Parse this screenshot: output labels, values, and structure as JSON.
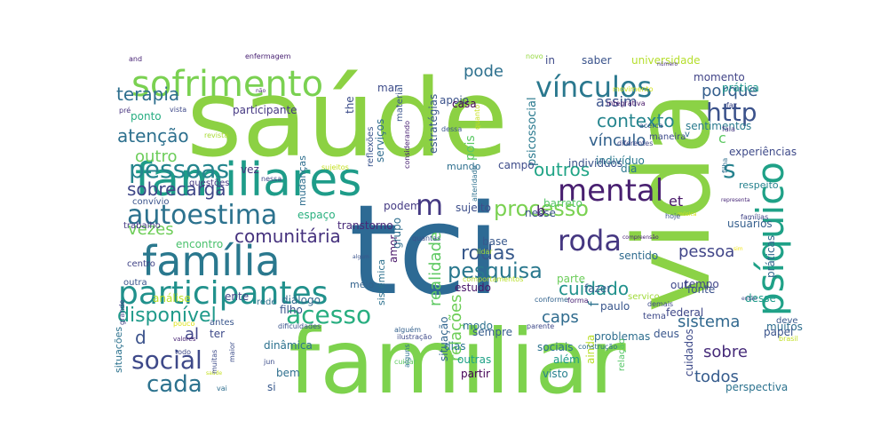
{
  "cloud": {
    "words": [
      {
        "text": "tci",
        "color": "#2d6a94"
      },
      {
        "text": "saúde",
        "color": "#8cd143"
      },
      {
        "text": "familiar",
        "color": "#7dd24d"
      },
      {
        "text": "vida",
        "color": "#8bd246"
      },
      {
        "text": "familiares",
        "color": "#1e9c89"
      },
      {
        "text": "família",
        "color": "#2a788e"
      },
      {
        "text": "sofrimento",
        "color": "#7ad151"
      },
      {
        "text": "participantes",
        "color": "#21918c"
      },
      {
        "text": "psíquico",
        "color": "#1fa187"
      },
      {
        "text": "mental",
        "color": "#481f70"
      },
      {
        "text": "vínculos",
        "color": "#2a788e"
      },
      {
        "text": "pessoas",
        "color": "#25858e"
      },
      {
        "text": "autoestima",
        "color": "#2c728e"
      },
      {
        "text": "acesso",
        "color": "#28ae80"
      },
      {
        "text": "roda",
        "color": "#453781"
      },
      {
        "text": "http",
        "color": "#3b528b"
      },
      {
        "text": "social",
        "color": "#3e4989"
      },
      {
        "text": "cada",
        "color": "#2c728e"
      },
      {
        "text": "m",
        "color": "#443983"
      },
      {
        "text": "s",
        "color": "#26828e"
      },
      {
        "text": "pesquisa",
        "color": "#2a788e"
      },
      {
        "text": "rodas",
        "color": "#38598c"
      },
      {
        "text": "processo",
        "color": "#7ad151"
      },
      {
        "text": "disponível",
        "color": "#1f9a8a"
      },
      {
        "text": "terapia",
        "color": "#2e6f8e"
      },
      {
        "text": "sobrecarga",
        "color": "#3f4788"
      },
      {
        "text": "comunitária",
        "color": "#46327e"
      },
      {
        "text": "cuidado",
        "color": "#21918c"
      },
      {
        "text": "contexto",
        "color": "#25858e"
      },
      {
        "text": "vínculo",
        "color": "#33628d"
      },
      {
        "text": "atenção",
        "color": "#2d708e"
      },
      {
        "text": "outro",
        "color": "#6ccd5a"
      },
      {
        "text": "outros",
        "color": "#20a486"
      },
      {
        "text": "vezes",
        "color": "#6ece58"
      },
      {
        "text": "pode",
        "color": "#2d708e"
      },
      {
        "text": "assim",
        "color": "#3b528b"
      },
      {
        "text": "porque",
        "color": "#355f8d"
      },
      {
        "text": "sistema",
        "color": "#31688e"
      },
      {
        "text": "sobre",
        "color": "#472c7a"
      },
      {
        "text": "todos",
        "color": "#365c8d"
      },
      {
        "text": "pessoa",
        "color": "#404588"
      },
      {
        "text": "caps",
        "color": "#2f6b8e"
      },
      {
        "text": "relações",
        "color": "#6ece58"
      },
      {
        "text": "realidade",
        "color": "#5ec962"
      },
      {
        "text": "et",
        "color": "#481769"
      },
      {
        "text": "c",
        "color": "#5ec962"
      },
      {
        "text": "d",
        "color": "#3b528b"
      },
      {
        "text": "al",
        "color": "#404688"
      },
      {
        "text": "b",
        "color": "#481a6c"
      },
      {
        "text": "f",
        "color": "#2c728e"
      },
      {
        "text": "universidade",
        "color": "#b5de2b"
      },
      {
        "text": "momento",
        "color": "#414487"
      },
      {
        "text": "saber",
        "color": "#3a538b"
      },
      {
        "text": "in",
        "color": "#3e4a89"
      },
      {
        "text": "and",
        "color": "#482475"
      },
      {
        "text": "enfermagem",
        "color": "#482173"
      },
      {
        "text": "novo",
        "color": "#95d840"
      },
      {
        "text": "número",
        "color": "#46307e"
      },
      {
        "text": "prática",
        "color": "#1f958b"
      },
      {
        "text": "sentimentos",
        "color": "#2a7b8e"
      },
      {
        "text": "participante",
        "color": "#453882"
      },
      {
        "text": "ponto",
        "color": "#26ad81"
      },
      {
        "text": "mudanças",
        "color": "#2e6e8e"
      },
      {
        "text": "the",
        "color": "#3d4d8a"
      },
      {
        "text": "serviços",
        "color": "#2f6c8e"
      },
      {
        "text": "estratégias",
        "color": "#39568c"
      },
      {
        "text": "apoio",
        "color": "#3b528b"
      },
      {
        "text": "pois",
        "color": "#5ac864"
      },
      {
        "text": "psicossocial",
        "color": "#29798e"
      },
      {
        "text": "casa",
        "color": "#440154"
      },
      {
        "text": "mar",
        "color": "#3e4c8a"
      },
      {
        "text": "campo",
        "color": "#3e4c8a"
      },
      {
        "text": "barreto",
        "color": "#56c667"
      },
      {
        "text": "indivíduo",
        "color": "#2a788e"
      },
      {
        "text": "indivíduos",
        "color": "#3a538b"
      },
      {
        "text": "mundo",
        "color": "#2e6f8e"
      },
      {
        "text": "dia",
        "color": "#2a778e"
      },
      {
        "text": "experiências",
        "color": "#3e4a89"
      },
      {
        "text": "respeito",
        "color": "#26828e"
      },
      {
        "text": "vez",
        "color": "#46337f"
      },
      {
        "text": "nessa",
        "color": "#3f4889"
      },
      {
        "text": "espaço",
        "color": "#2ab07f"
      },
      {
        "text": "podem",
        "color": "#443a83"
      },
      {
        "text": "sujeito",
        "color": "#3d4e8a"
      },
      {
        "text": "nesse",
        "color": "#3b528b"
      },
      {
        "text": "transtorno",
        "color": "#472878"
      },
      {
        "text": "encontro",
        "color": "#4ac16d"
      },
      {
        "text": "base",
        "color": "#38588c"
      },
      {
        "text": "lidar",
        "color": "#a2da37"
      },
      {
        "text": "sentido",
        "color": "#2f6b8e"
      },
      {
        "text": "out",
        "color": "#3f4889"
      },
      {
        "text": "fonte",
        "color": "#3b528b"
      },
      {
        "text": "tempo",
        "color": "#404588"
      },
      {
        "text": "fazer",
        "color": "#365c8d"
      },
      {
        "text": "parte",
        "color": "#6ccd5a"
      },
      {
        "text": "paulo",
        "color": "#39568c"
      },
      {
        "text": "estudo",
        "color": "#481668"
      },
      {
        "text": "meio",
        "color": "#33638d"
      },
      {
        "text": "amor",
        "color": "#481668"
      },
      {
        "text": "grupo",
        "color": "#2e6e8e"
      },
      {
        "text": "análise",
        "color": "#bddf26"
      },
      {
        "text": "diálogo",
        "color": "#31688e"
      },
      {
        "text": "filho",
        "color": "#3a548c"
      },
      {
        "text": "ente",
        "color": "#414487"
      },
      {
        "text": "modo",
        "color": "#2c718e"
      },
      {
        "text": "sempre",
        "color": "#365d8d"
      },
      {
        "text": "situação",
        "color": "#32658e"
      },
      {
        "text": "sociais",
        "color": "#2c728e"
      },
      {
        "text": "além",
        "color": "#1e9b8a"
      },
      {
        "text": "outras",
        "color": "#1fa287"
      },
      {
        "text": "dias",
        "color": "#2b758e"
      },
      {
        "text": "partir",
        "color": "#440154"
      },
      {
        "text": "visto",
        "color": "#27808e"
      },
      {
        "text": "dinâmica",
        "color": "#2c718e"
      },
      {
        "text": "bem",
        "color": "#2e6f8e"
      },
      {
        "text": "si",
        "color": "#38598c"
      },
      {
        "text": "jun",
        "color": "#3d4d8a"
      },
      {
        "text": "ter",
        "color": "#3e4a89"
      },
      {
        "text": "dificuldades",
        "color": "#3a538b"
      },
      {
        "text": "perspectiva",
        "color": "#2c728e"
      },
      {
        "text": "ainda",
        "color": "#bade28"
      },
      {
        "text": "situações",
        "color": "#2c728e"
      },
      {
        "text": "sistêmica",
        "color": "#2d718e"
      },
      {
        "text": "federal",
        "color": "#3f4788"
      },
      {
        "text": "usuários",
        "color": "#355f8d"
      },
      {
        "text": "práticas",
        "color": "#31678e"
      },
      {
        "text": "desse",
        "color": "#1f9a8a"
      },
      {
        "text": "muitos",
        "color": "#2e6e8e"
      },
      {
        "text": "tema",
        "color": "#3e4a89"
      },
      {
        "text": "deve",
        "color": "#38598c"
      },
      {
        "text": "problemas",
        "color": "#2e6e8e"
      },
      {
        "text": "deus",
        "color": "#39568c"
      },
      {
        "text": "papel",
        "color": "#3a538b"
      },
      {
        "text": "serviço",
        "color": "#a0da39"
      },
      {
        "text": "cuidados",
        "color": "#3e4a89"
      },
      {
        "text": "relação",
        "color": "#56c667"
      },
      {
        "text": "rede",
        "color": "#2d708e"
      },
      {
        "text": "antes",
        "color": "#39568c"
      },
      {
        "text": "outra",
        "color": "#3a548c"
      },
      {
        "text": "centro",
        "color": "#414487"
      },
      {
        "text": "trabalho",
        "color": "#443983"
      },
      {
        "text": "convívio",
        "color": "#3a548c"
      },
      {
        "text": "questões",
        "color": "#453882"
      },
      {
        "text": "pré",
        "color": "#46327e"
      },
      {
        "text": "vista",
        "color": "#3e4989"
      },
      {
        "text": "revista",
        "color": "#a8db34"
      },
      {
        "text": "não",
        "color": "#482576"
      },
      {
        "text": "material",
        "color": "#3a548c"
      },
      {
        "text": "reflexões",
        "color": "#3a548c"
      },
      {
        "text": "considerando",
        "color": "#482173"
      },
      {
        "text": "dessa",
        "color": "#39568c"
      },
      {
        "text": "quanto",
        "color": "#c8e020"
      },
      {
        "text": "movimento",
        "color": "#d2e21b"
      },
      {
        "text": "integrativa",
        "color": "#48186a"
      },
      {
        "text": "diferentes",
        "color": "#3f4788"
      },
      {
        "text": "acerca",
        "color": "#3a548c"
      },
      {
        "text": "maneira",
        "color": "#3e4c8a"
      },
      {
        "text": "filha",
        "color": "#2e6e8e"
      },
      {
        "text": "fala",
        "color": "#453781"
      },
      {
        "text": "faz",
        "color": "#3e4a89"
      },
      {
        "text": "v",
        "color": "#2e6e8e"
      },
      {
        "text": "sujeitos",
        "color": "#c5e021"
      },
      {
        "text": "alteridade",
        "color": "#2d708e"
      },
      {
        "text": "representa",
        "color": "#482878"
      },
      {
        "text": "música",
        "color": "#d8e219"
      },
      {
        "text": "famílias",
        "color": "#414487"
      },
      {
        "text": "hoje",
        "color": "#3a548c"
      },
      {
        "text": "quantas",
        "color": "#3b518b"
      },
      {
        "text": "compreensão",
        "color": "#482374"
      },
      {
        "text": "então",
        "color": "#3e4989"
      },
      {
        "text": "comportamentos",
        "color": "#b8de29"
      },
      {
        "text": "demais",
        "color": "#3e4989"
      },
      {
        "text": "forma",
        "color": "#482173"
      },
      {
        "text": "conforme",
        "color": "#33638d"
      },
      {
        "text": "alguém",
        "color": "#34618d"
      },
      {
        "text": "parente",
        "color": "#3e4989"
      },
      {
        "text": "construção",
        "color": "#2e6e8e"
      },
      {
        "text": "brasil",
        "color": "#c2df23"
      },
      {
        "text": "pouco",
        "color": "#dde318"
      },
      {
        "text": "valores",
        "color": "#482575"
      },
      {
        "text": "todo",
        "color": "#3e4a89"
      },
      {
        "text": "grande",
        "color": "#424086"
      },
      {
        "text": "saúde",
        "color": "#c5e021"
      },
      {
        "text": "maior",
        "color": "#3d4e8a"
      },
      {
        "text": "muitas",
        "color": "#3e4c8a"
      },
      {
        "text": "vai",
        "color": "#2e6e8e"
      },
      {
        "text": "ilustração",
        "color": "#3e4a89"
      },
      {
        "text": "cuidar",
        "color": "#5ec962"
      },
      {
        "text": "algum",
        "color": "#3a548c"
      },
      {
        "text": "sim",
        "color": "#f1e51d"
      },
      {
        "text": "alguns",
        "color": "#2c718e"
      }
    ]
  }
}
